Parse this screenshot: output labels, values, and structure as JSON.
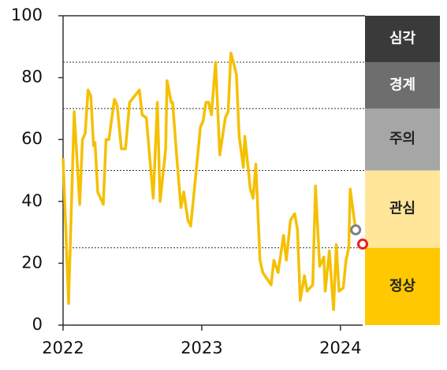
{
  "chart_data": {
    "type": "line",
    "color": "#f5c000",
    "x": [
      2022.0,
      2022.04,
      2022.08,
      2022.12,
      2022.14,
      2022.16,
      2022.18,
      2022.2,
      2022.22,
      2022.23,
      2022.25,
      2022.29,
      2022.31,
      2022.33,
      2022.37,
      2022.39,
      2022.42,
      2022.45,
      2022.48,
      2022.55,
      2022.57,
      2022.6,
      2022.65,
      2022.68,
      2022.7,
      2022.74,
      2022.75,
      2022.78,
      2022.79,
      2022.82,
      2022.85,
      2022.87,
      2022.9,
      2022.92,
      2022.96,
      2022.99,
      2023.01,
      2023.03,
      2023.05,
      2023.07,
      2023.1,
      2023.13,
      2023.17,
      2023.19,
      2023.21,
      2023.25,
      2023.27,
      2023.3,
      2023.31,
      2023.35,
      2023.37,
      2023.39,
      2023.42,
      2023.44,
      2023.5,
      2023.52,
      2023.55,
      2023.59,
      2023.61,
      2023.64,
      2023.67,
      2023.69,
      2023.71,
      2023.74,
      2023.76,
      2023.8,
      2023.82,
      2023.85,
      2023.88,
      2023.89,
      2023.92,
      2023.95,
      2023.97,
      2023.99,
      2024.02,
      2024.04,
      2024.06,
      2024.07,
      2024.1,
      2024.11
    ],
    "values": [
      54,
      7,
      69,
      39,
      60,
      62,
      76,
      74,
      58,
      59,
      43,
      39,
      60,
      60,
      73,
      71,
      57,
      57,
      72,
      76,
      68,
      67,
      41,
      72,
      40,
      57,
      79,
      72,
      72,
      54,
      38,
      43,
      34,
      32,
      50,
      64,
      66,
      72,
      72,
      68,
      85,
      55,
      67,
      69,
      88,
      81,
      61,
      51,
      61,
      44,
      41,
      52,
      21,
      17,
      13,
      21,
      17,
      29,
      21,
      34,
      36,
      31,
      8,
      16,
      11,
      13,
      45,
      19,
      22,
      11,
      24,
      5,
      26,
      11,
      12,
      21,
      25,
      44,
      34,
      31
    ],
    "points": [
      {
        "x": 2024.11,
        "y": 30.8,
        "color": "#808080"
      },
      {
        "x": 2024.16,
        "y": 26.2,
        "color": "#e8201c"
      }
    ],
    "xlim": [
      2022,
      2024.16
    ],
    "xticks": [
      2022,
      2023,
      2024
    ],
    "ylim": [
      0,
      100
    ],
    "yticks": [
      0,
      20,
      40,
      60,
      80,
      100
    ],
    "thresholds": [
      25,
      50,
      70,
      85
    ],
    "zones": [
      {
        "label": "정상",
        "color": "#ffc800",
        "text_color": "#222222"
      },
      {
        "label": "관심",
        "color": "#ffe699",
        "text_color": "#222222"
      },
      {
        "label": "주의",
        "color": "#a6a6a6",
        "text_color": "#222222"
      },
      {
        "label": "경계",
        "color": "#6e6e6e",
        "text_color": "#ffffff"
      },
      {
        "label": "심각",
        "color": "#3a3a3a",
        "text_color": "#ffffff"
      }
    ]
  }
}
